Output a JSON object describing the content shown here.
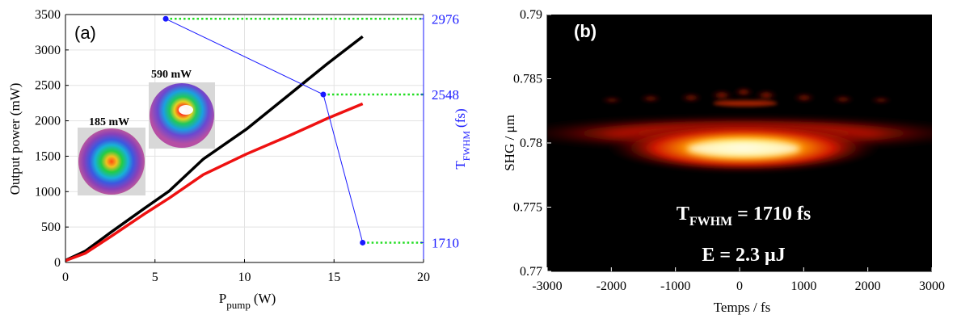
{
  "chart_data": [
    {
      "panel_label": "(a)",
      "type": "line",
      "xlabel": "P",
      "xlabel_sub": "pump",
      "xlabel_unit": "(W)",
      "ylabel": "Output power (mW)",
      "y2label": "T",
      "y2label_sub": "FWHM",
      "y2label_unit": "(fs)",
      "xlim": [
        0,
        20
      ],
      "ylim": [
        0,
        3500
      ],
      "x_ticks": [
        "0",
        "5",
        "10",
        "15",
        "20"
      ],
      "y_ticks": [
        "0",
        "500",
        "1000",
        "1500",
        "2000",
        "2500",
        "3000",
        "3500"
      ],
      "y2_ticks": [
        "1710",
        "2548",
        "2976"
      ],
      "grid": true,
      "colors": {
        "series_black": "#000000",
        "series_red": "#ee1111",
        "fwhm": "#1a1aff",
        "dotted": "#22dd22"
      },
      "series": [
        {
          "color": "black",
          "x": [
            0,
            1.1,
            2.5,
            4.5,
            5.8,
            7.7,
            10.1,
            12.5,
            14.6,
            16.6
          ],
          "y": [
            30,
            160,
            420,
            780,
            1010,
            1460,
            1880,
            2370,
            2800,
            3190
          ]
        },
        {
          "color": "red",
          "x": [
            0,
            1.1,
            2.5,
            4.5,
            5.8,
            7.7,
            10.1,
            12.5,
            14.6,
            16.6
          ],
          "y": [
            25,
            130,
            360,
            700,
            910,
            1240,
            1530,
            1790,
            2030,
            2240
          ]
        }
      ],
      "fwhm_series": {
        "x": [
          5.6,
          14.4,
          16.6
        ],
        "y_right": [
          2976,
          2548,
          1710
        ]
      },
      "insets": [
        {
          "label": "185 mW"
        },
        {
          "label": "590 mW"
        }
      ]
    },
    {
      "panel_label": "(b)",
      "type": "heatmap",
      "xlabel": "Temps / fs",
      "ylabel": "SHG / μm",
      "xlim": [
        -3000,
        3000
      ],
      "ylim": [
        0.77,
        0.79
      ],
      "x_ticks": [
        "-3000",
        "-2000",
        "-1000",
        "0",
        "1000",
        "2000",
        "3000"
      ],
      "y_ticks": [
        "0.77",
        "0.775",
        "0.78",
        "0.785",
        "0.79"
      ],
      "colormap": "hot",
      "annotations": {
        "fwhm_main": "T",
        "fwhm_sub": "FWHM",
        "fwhm_value": " = 1710 fs",
        "energy": "E = 2.3 μJ"
      }
    }
  ]
}
